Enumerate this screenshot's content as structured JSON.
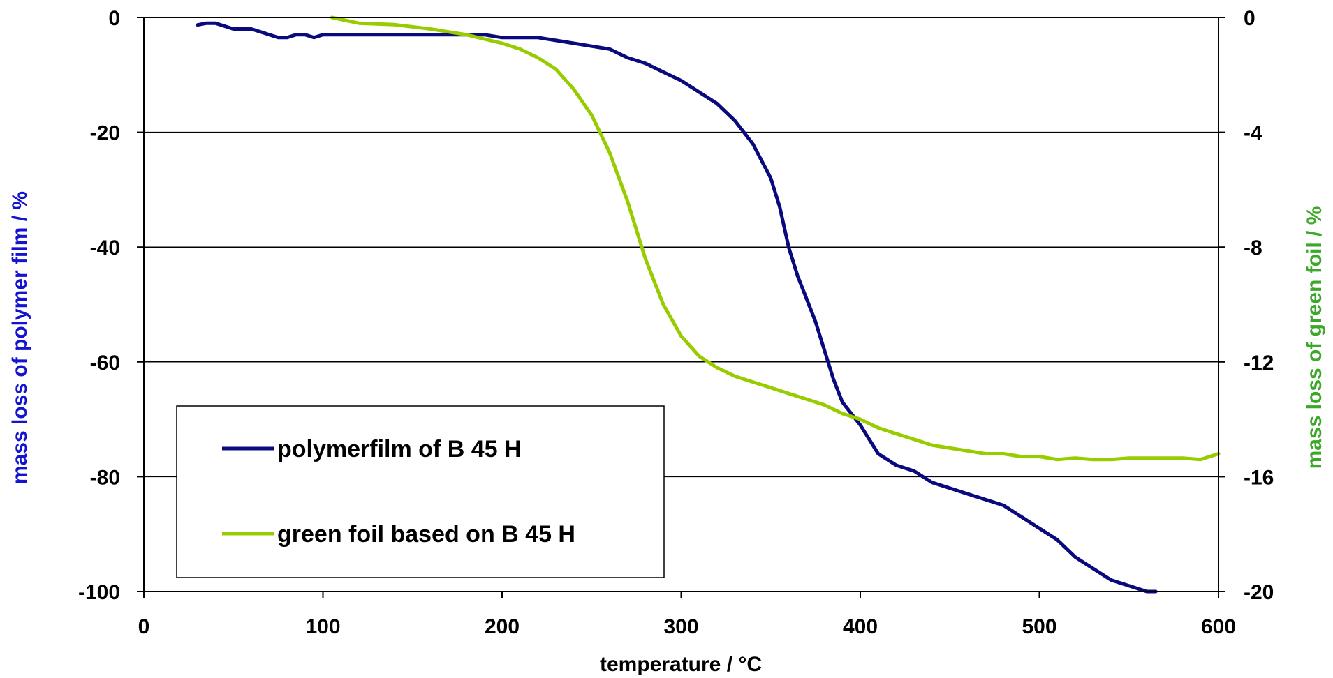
{
  "chart_data": {
    "type": "line",
    "xlabel": "temperature / °C",
    "ylabel_left": "mass loss of polymer film / %",
    "ylabel_right": "mass loss of green foil / %",
    "xlim": [
      0,
      600
    ],
    "ylim_left": [
      -100,
      0
    ],
    "ylim_right": [
      -20,
      0
    ],
    "x_ticks": [
      "0",
      "100",
      "200",
      "300",
      "400",
      "500",
      "600"
    ],
    "y_ticks_left": [
      "0",
      "-20",
      "-40",
      "-60",
      "-80",
      "-100"
    ],
    "y_ticks_right": [
      "0",
      "-4",
      "-8",
      "-12",
      "-16",
      "-20"
    ],
    "grid": "horizontal",
    "legend_position": "bottom-left",
    "series": [
      {
        "name": "polymerfilm of B 45 H",
        "axis": "left",
        "color": "#0a0a7e",
        "points": [
          [
            30,
            -1.3
          ],
          [
            35,
            -1
          ],
          [
            40,
            -1
          ],
          [
            50,
            -2
          ],
          [
            60,
            -2
          ],
          [
            70,
            -3
          ],
          [
            75,
            -3.5
          ],
          [
            80,
            -3.5
          ],
          [
            85,
            -3
          ],
          [
            90,
            -3
          ],
          [
            95,
            -3.5
          ],
          [
            100,
            -3
          ],
          [
            110,
            -3
          ],
          [
            150,
            -3
          ],
          [
            190,
            -3
          ],
          [
            200,
            -3.5
          ],
          [
            210,
            -3.5
          ],
          [
            220,
            -3.5
          ],
          [
            230,
            -4
          ],
          [
            240,
            -4.5
          ],
          [
            250,
            -5
          ],
          [
            260,
            -5.5
          ],
          [
            270,
            -7
          ],
          [
            280,
            -8
          ],
          [
            290,
            -9.5
          ],
          [
            300,
            -11
          ],
          [
            310,
            -13
          ],
          [
            320,
            -15
          ],
          [
            330,
            -18
          ],
          [
            340,
            -22
          ],
          [
            350,
            -28
          ],
          [
            355,
            -33
          ],
          [
            360,
            -40
          ],
          [
            365,
            -45
          ],
          [
            370,
            -49
          ],
          [
            375,
            -53
          ],
          [
            380,
            -58
          ],
          [
            385,
            -63
          ],
          [
            390,
            -67
          ],
          [
            395,
            -69
          ],
          [
            400,
            -71
          ],
          [
            410,
            -76
          ],
          [
            420,
            -78
          ],
          [
            430,
            -79
          ],
          [
            440,
            -81
          ],
          [
            450,
            -82
          ],
          [
            460,
            -83
          ],
          [
            470,
            -84
          ],
          [
            480,
            -85
          ],
          [
            490,
            -87
          ],
          [
            500,
            -89
          ],
          [
            510,
            -91
          ],
          [
            520,
            -94
          ],
          [
            530,
            -96
          ],
          [
            540,
            -98
          ],
          [
            550,
            -99
          ],
          [
            560,
            -100
          ],
          [
            565,
            -100
          ]
        ]
      },
      {
        "name": "green foil based on B 45 H",
        "axis": "right",
        "color": "#99cc00",
        "points": [
          [
            105,
            0
          ],
          [
            120,
            -0.2
          ],
          [
            140,
            -0.25
          ],
          [
            160,
            -0.4
          ],
          [
            180,
            -0.6
          ],
          [
            200,
            -0.9
          ],
          [
            210,
            -1.1
          ],
          [
            220,
            -1.4
          ],
          [
            230,
            -1.8
          ],
          [
            240,
            -2.5
          ],
          [
            250,
            -3.4
          ],
          [
            260,
            -4.7
          ],
          [
            270,
            -6.4
          ],
          [
            280,
            -8.4
          ],
          [
            290,
            -10
          ],
          [
            300,
            -11.1
          ],
          [
            310,
            -11.8
          ],
          [
            320,
            -12.2
          ],
          [
            330,
            -12.5
          ],
          [
            340,
            -12.7
          ],
          [
            350,
            -12.9
          ],
          [
            360,
            -13.1
          ],
          [
            370,
            -13.3
          ],
          [
            380,
            -13.5
          ],
          [
            390,
            -13.8
          ],
          [
            400,
            -14
          ],
          [
            410,
            -14.3
          ],
          [
            420,
            -14.5
          ],
          [
            430,
            -14.7
          ],
          [
            440,
            -14.9
          ],
          [
            450,
            -15
          ],
          [
            460,
            -15.1
          ],
          [
            470,
            -15.2
          ],
          [
            480,
            -15.2
          ],
          [
            490,
            -15.3
          ],
          [
            500,
            -15.3
          ],
          [
            510,
            -15.4
          ],
          [
            520,
            -15.35
          ],
          [
            530,
            -15.4
          ],
          [
            540,
            -15.4
          ],
          [
            550,
            -15.35
          ],
          [
            560,
            -15.35
          ],
          [
            570,
            -15.35
          ],
          [
            580,
            -15.35
          ],
          [
            590,
            -15.4
          ],
          [
            600,
            -15.2
          ]
        ]
      }
    ]
  }
}
